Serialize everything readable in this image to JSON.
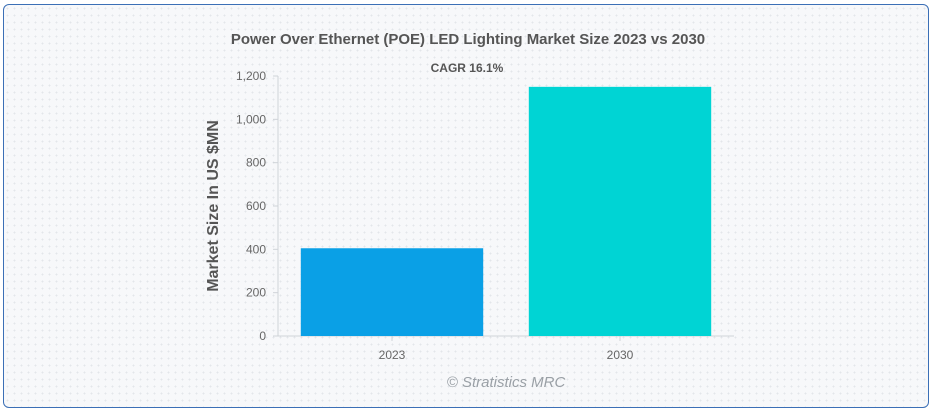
{
  "chart_data": {
    "type": "bar",
    "title": "Power Over Ethernet (POE) LED Lighting Market Size 2023 vs 2030",
    "annotation": "CAGR 16.1%",
    "ylabel": "Market Size In US $MN",
    "xlabel": "",
    "categories": [
      "2023",
      "2030"
    ],
    "values": [
      405,
      1150
    ],
    "colors": [
      "#0aa0e6",
      "#00d4d4"
    ],
    "ylim": [
      0,
      1200
    ],
    "yticks": [
      0,
      200,
      400,
      600,
      800,
      1000,
      1200
    ],
    "ytick_labels": [
      "0",
      "200",
      "400",
      "600",
      "800",
      "1,000",
      "1,200"
    ],
    "grid": false,
    "legend": "none"
  },
  "watermark": "© Stratistics MRC"
}
